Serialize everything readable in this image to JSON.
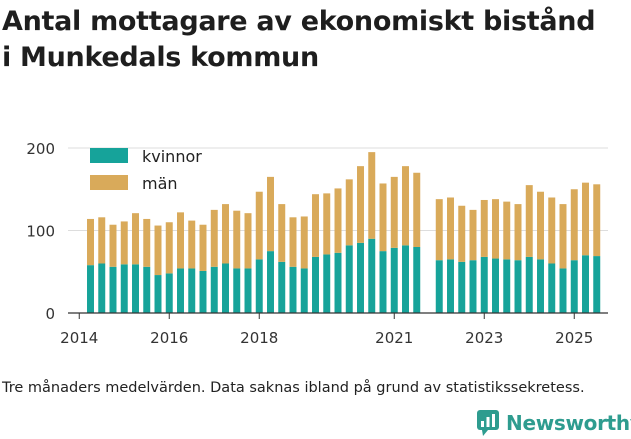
{
  "title_lines": [
    "Antal mottagare av ekonomiskt bistånd",
    "i Munkedals kommun"
  ],
  "footnote": "Tre månaders medelvärden. Data saknas ibland på grund av statistikssekretess.",
  "brand": "Newsworthy",
  "colors": {
    "kvinnor": "#16a39a",
    "man": "#d9aa5a",
    "grid": "#dddddd",
    "axis": "#333333",
    "brand": "#2e9c8f"
  },
  "chart_data": {
    "type": "bar",
    "stacked": true,
    "title": "Antal mottagare av ekonomiskt bistånd i Munkedals kommun",
    "x_start": 2014.25,
    "x_step": 0.25,
    "xlim": [
      2013.75,
      2025.75
    ],
    "ylim": [
      0,
      200
    ],
    "yticks": [
      0,
      100,
      200
    ],
    "xticks": [
      2014,
      2016,
      2018,
      2021,
      2023,
      2025
    ],
    "legend_position": "top-left",
    "series": [
      {
        "name": "kvinnor",
        "values": [
          58,
          60,
          56,
          59,
          59,
          56,
          46,
          48,
          54,
          54,
          51,
          56,
          60,
          54,
          54,
          65,
          75,
          62,
          56,
          54,
          68,
          71,
          73,
          82,
          85,
          90,
          75,
          79,
          82,
          80,
          null,
          64,
          65,
          62,
          64,
          68,
          66,
          65,
          64,
          68,
          65,
          60,
          54,
          64,
          70,
          69
        ]
      },
      {
        "name": "män",
        "values": [
          56,
          56,
          51,
          52,
          62,
          58,
          60,
          62,
          68,
          58,
          56,
          69,
          72,
          70,
          67,
          82,
          90,
          70,
          60,
          63,
          76,
          74,
          78,
          80,
          93,
          105,
          82,
          86,
          96,
          90,
          null,
          74,
          75,
          68,
          61,
          69,
          72,
          70,
          68,
          87,
          82,
          80,
          78,
          86,
          88,
          87
        ]
      }
    ]
  }
}
